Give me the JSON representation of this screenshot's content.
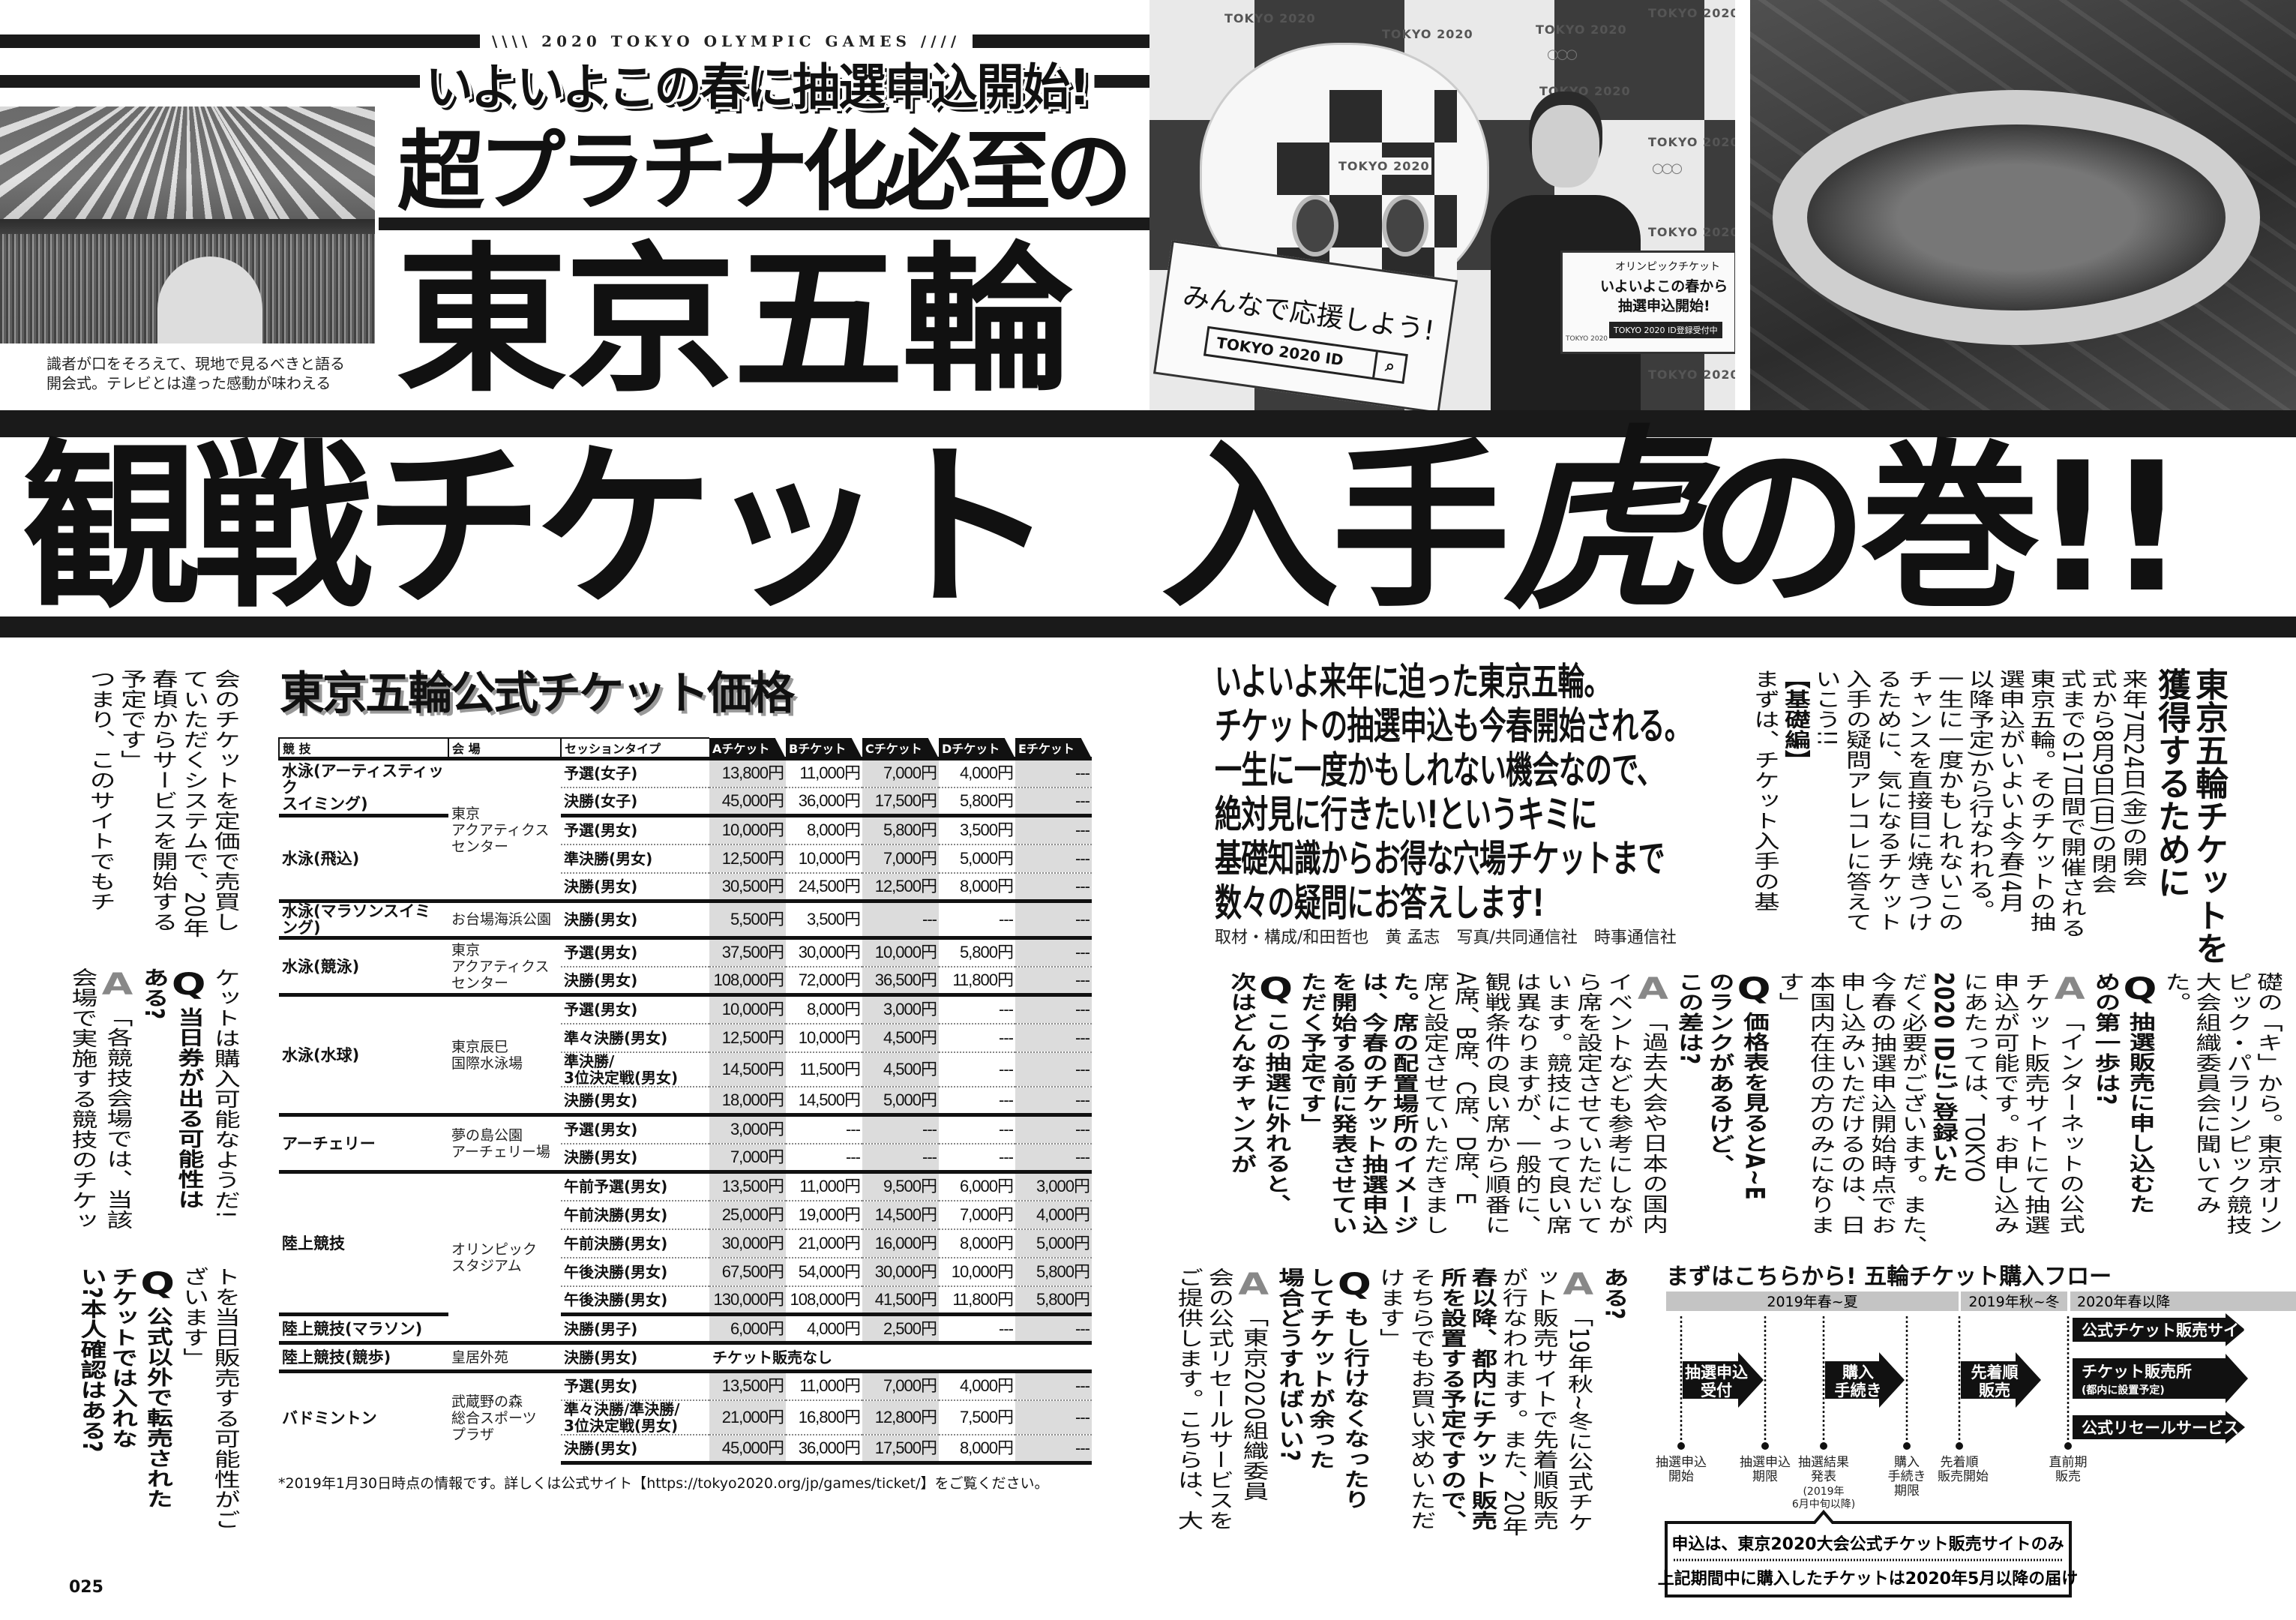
{
  "header": {
    "series_label": "\\\\\\\\ 2020 TOKYO OLYMPIC GAMES ////",
    "subtitle": "いよいよこの春に抽選申込開始!",
    "headline_line1": "超プラチナ化必至の",
    "headline_line2": "東京五輪",
    "title_part1": "観戦チケット",
    "title_part2": "入手",
    "title_tiger": "虎",
    "title_part3": "の巻!!"
  },
  "left_photo": {
    "caption": "識者が口をそろえて、現地で見るべきと語る\n開会式。テレビとは違った感動が味わえる"
  },
  "center_photo": {
    "backdrop_label": "TOKYO 2020",
    "rings": "○○○",
    "sign1_text": "みんなで応援しよう!",
    "sign1_box": "TOKYO 2020 ID",
    "sign1_search_icon": "search-icon",
    "sign2_line1": "オリンピックチケット",
    "sign2_line2": "いよいよこの春から",
    "sign2_line3": "抽選申込開始!",
    "sign2_tag": "TOKYO 2020 ID登録受付中"
  },
  "intro": {
    "lead": "いよいよ来年に迫った東京五輪。\nチケットの抽選申込も今春開始される。\n一生に一度かもしれない機会なので、\n絶対見に行きたい!というキミに\n基礎知識からお得な穴場チケットまで\n数々の疑問にお答えします!",
    "credits": "取材・構成/和田哲也　黄 孟志　写真/共同通信社　時事通信社"
  },
  "section_heading": [
    {
      "text": "東京五輪チケットを"
    },
    {
      "text": "獲得するために"
    }
  ],
  "body_top": [
    {
      "text": "来年7月24日(金)の開会"
    },
    {
      "text": "式から8月9日(日)の閉会"
    },
    {
      "text": "式までの17日間で開催される"
    },
    {
      "text": "東京五輪。そのチケットの抽"
    },
    {
      "text": "選申込がいよいよ今春(4月"
    },
    {
      "text": "以降予定)から行なわれる。"
    },
    {
      "text": "一生に一度かもしれないこの"
    },
    {
      "text": "チャンスを直接目に焼きつけ"
    },
    {
      "text": "るために、気になるチケット"
    },
    {
      "text": "入手の疑問アレコレに答えて"
    },
    {
      "text": "いこう!!"
    },
    {
      "text": "【基礎編】",
      "bold": true
    },
    {
      "text": "まずは、チケット入手の基"
    }
  ],
  "body_middle": [
    {
      "text": "礎の「キ」から。東京オリン"
    },
    {
      "text": "ピック・パラリンピック競技"
    },
    {
      "text": "大会組織委員会に聞いてみ"
    },
    {
      "text": "た。"
    },
    {
      "marker": "Q",
      "text": "抽選販売に申し込むた",
      "bold": true
    },
    {
      "text": "めの第一歩は?",
      "bold": true
    },
    {
      "marker": "A",
      "text": "「インターネットの公式"
    },
    {
      "text": "チケット販売サイトにて抽選"
    },
    {
      "text": "申込が可能です。お申し込み"
    },
    {
      "text": "にあたっては、TOKYO"
    },
    {
      "text": "2020 IDにご登録いた",
      "bold": true
    },
    {
      "text": "だく必要がございます。また、"
    },
    {
      "text": "今春の抽選申込開始時点でお"
    },
    {
      "text": "申し込みいただけるのは、日"
    },
    {
      "text": "本国内在住の方のみになりま"
    },
    {
      "text": "す」"
    },
    {
      "marker": "Q",
      "text": "価格表を見るとA~E",
      "bold": true
    },
    {
      "text": "のランクがあるけど、",
      "bold": true
    },
    {
      "text": "この差は?",
      "bold": true
    },
    {
      "marker": "A",
      "text": "「過去大会や日本の国内"
    },
    {
      "text": "イベントなども参考にしなが"
    },
    {
      "text": "ら席を設定させていただいて"
    },
    {
      "text": "います。競技によって良い席"
    },
    {
      "text": "は異なりますが、一般的に、"
    },
    {
      "text": "観戦条件の良い席から順番に"
    },
    {
      "text": "A席、B席、C席、D席、E"
    },
    {
      "text": "席と設定させていただきまし"
    },
    {
      "text": "た。席の配置場所のイメージ",
      "bold": true
    },
    {
      "text": "は、今春のチケット抽選申込",
      "bold": true
    },
    {
      "text": "を開始する前に発表させてい",
      "bold": true
    },
    {
      "text": "ただく予定です」",
      "bold": true
    },
    {
      "marker": "Q",
      "text": "この抽選に外れると、",
      "bold": true
    },
    {
      "text": "次はどんなチャンスが",
      "bold": true
    }
  ],
  "body_bottom": [
    {
      "text": "ある?",
      "bold": true
    },
    {
      "marker": "A",
      "text": "「19年秋~冬に公式チケ"
    },
    {
      "text": "ット販売サイトで先着順販売"
    },
    {
      "text": "が行なわれます。また、20年"
    },
    {
      "text": "春以降、都内にチケット販売",
      "bold": true
    },
    {
      "text": "所を設置する予定ですので、",
      "bold": true
    },
    {
      "text": "そちらでもお買い求めいただ"
    },
    {
      "text": "けます」"
    },
    {
      "marker": "Q",
      "text": "もし行けなくなったり",
      "bold": true
    },
    {
      "text": "してチケットが余った",
      "bold": true
    },
    {
      "text": "場合どうすればいい?",
      "bold": true
    },
    {
      "marker": "A",
      "text": "「東京2020組織委員"
    },
    {
      "text": "会の公式リセールサービスを"
    },
    {
      "text": "ご提供します。こちらは、大"
    }
  ],
  "left_tier1": [
    {
      "text": "会のチケットを定価で売買し"
    },
    {
      "text": "ていただくシステムで、20年"
    },
    {
      "text": "春頃からサービスを開始する"
    },
    {
      "text": "予定です」"
    },
    {
      "text": "つまり、このサイトでもチ"
    }
  ],
  "left_tier2": [
    {
      "text": "ケットは購入可能なようだ!"
    },
    {
      "marker": "Q",
      "text": "当日券が出る可能性は",
      "bold": true
    },
    {
      "text": "ある?",
      "bold": true
    },
    {
      "marker": "A",
      "text": "「各競技会場では、当該"
    },
    {
      "text": "会場で実施する競技のチケッ"
    }
  ],
  "left_tier3": [
    {
      "text": "トを当日販売する可能性がご"
    },
    {
      "text": "ざいます」"
    },
    {
      "marker": "Q",
      "text": "公式以外で転売された",
      "bold": true
    },
    {
      "text": "チケットでは入れな",
      "bold": true
    },
    {
      "text": "い?本人確認はある?",
      "bold": true
    }
  ],
  "table": {
    "title": "東京五輪公式チケット価格",
    "headers": [
      "競 技",
      "会 場",
      "セッションタイプ",
      "Aチケット",
      "Bチケット",
      "Cチケット",
      "Dチケット",
      "Eチケット"
    ],
    "groups": [
      {
        "event": "水泳(アーティスティック\nスイミング)",
        "venue": "東京\nアクアティクス\nセンター",
        "sessions": [
          {
            "name": "予選(女子)",
            "prices": [
              "13,800円",
              "11,000円",
              "7,000円",
              "4,000円",
              "---"
            ]
          },
          {
            "name": "決勝(女子)",
            "prices": [
              "45,000円",
              "36,000円",
              "17,500円",
              "5,800円",
              "---"
            ]
          }
        ]
      },
      {
        "event": "水泳(飛込)",
        "venue": "東京\nアクアティクス\nセンター",
        "sessions": [
          {
            "name": "予選(男女)",
            "prices": [
              "10,000円",
              "8,000円",
              "5,800円",
              "3,500円",
              "---"
            ]
          },
          {
            "name": "準決勝(男女)",
            "prices": [
              "12,500円",
              "10,000円",
              "7,000円",
              "5,000円",
              "---"
            ]
          },
          {
            "name": "決勝(男女)",
            "prices": [
              "30,500円",
              "24,500円",
              "12,500円",
              "8,000円",
              "---"
            ]
          }
        ]
      },
      {
        "event": "水泳(マラソンスイミング)",
        "venue": "お台場海浜公園",
        "sessions": [
          {
            "name": "決勝(男女)",
            "prices": [
              "5,500円",
              "3,500円",
              "---",
              "---",
              "---"
            ]
          }
        ]
      },
      {
        "event": "水泳(競泳)",
        "venue": "東京\nアクアティクス\nセンター",
        "sessions": [
          {
            "name": "予選(男女)",
            "prices": [
              "37,500円",
              "30,000円",
              "10,000円",
              "5,800円",
              "---"
            ]
          },
          {
            "name": "決勝(男女)",
            "prices": [
              "108,000円",
              "72,000円",
              "36,500円",
              "11,800円",
              "---"
            ]
          }
        ]
      },
      {
        "event": "水泳(水球)",
        "venue": "東京辰巳\n国際水泳場",
        "sessions": [
          {
            "name": "予選(男女)",
            "prices": [
              "10,000円",
              "8,000円",
              "3,000円",
              "---",
              "---"
            ]
          },
          {
            "name": "準々決勝(男女)",
            "prices": [
              "12,500円",
              "10,000円",
              "4,500円",
              "---",
              "---"
            ]
          },
          {
            "name": "準決勝/\n3位決定戦(男女)",
            "prices": [
              "14,500円",
              "11,500円",
              "4,500円",
              "---",
              "---"
            ]
          },
          {
            "name": "決勝(男女)",
            "prices": [
              "18,000円",
              "14,500円",
              "5,000円",
              "---",
              "---"
            ]
          }
        ]
      },
      {
        "event": "アーチェリー",
        "venue": "夢の島公園\nアーチェリー場",
        "sessions": [
          {
            "name": "予選(男女)",
            "prices": [
              "3,000円",
              "---",
              "---",
              "---",
              "---"
            ]
          },
          {
            "name": "決勝(男女)",
            "prices": [
              "7,000円",
              "---",
              "---",
              "---",
              "---"
            ]
          }
        ]
      },
      {
        "event": "陸上競技",
        "venue": "オリンピック\nスタジアム",
        "sessions": [
          {
            "name": "午前予選(男女)",
            "prices": [
              "13,500円",
              "11,000円",
              "9,500円",
              "6,000円",
              "3,000円"
            ]
          },
          {
            "name": "午前決勝(男女)",
            "prices": [
              "25,000円",
              "19,000円",
              "14,500円",
              "7,000円",
              "4,000円"
            ]
          },
          {
            "name": "午前決勝(男女)",
            "prices": [
              "30,000円",
              "21,000円",
              "16,000円",
              "8,000円",
              "5,000円"
            ]
          },
          {
            "name": "午後決勝(男女)",
            "prices": [
              "67,500円",
              "54,000円",
              "30,000円",
              "10,000円",
              "5,800円"
            ]
          },
          {
            "name": "午後決勝(男女)",
            "prices": [
              "130,000円",
              "108,000円",
              "41,500円",
              "11,800円",
              "5,800円"
            ]
          }
        ]
      },
      {
        "event": "陸上競技(マラソン)",
        "venue": "オリンピック\nスタジアム",
        "sessions": [
          {
            "name": "決勝(男子)",
            "prices": [
              "6,000円",
              "4,000円",
              "2,500円",
              "---",
              "---"
            ]
          }
        ]
      },
      {
        "event": "陸上競技(競歩)",
        "venue": "皇居外苑",
        "sessions": [
          {
            "name": "決勝(男女)",
            "note": "チケット販売なし"
          }
        ]
      },
      {
        "event": "バドミントン",
        "venue": "武蔵野の森\n総合スポーツ\nプラザ",
        "sessions": [
          {
            "name": "予選(男女)",
            "prices": [
              "13,500円",
              "11,000円",
              "7,000円",
              "4,000円",
              "---"
            ]
          },
          {
            "name": "準々決勝/準決勝/\n3位決定戦(男女)",
            "prices": [
              "21,000円",
              "16,800円",
              "12,800円",
              "7,500円",
              "---"
            ]
          },
          {
            "name": "決勝(男女)",
            "prices": [
              "45,000円",
              "36,000円",
              "17,500円",
              "8,000円",
              "---"
            ]
          }
        ]
      }
    ],
    "footnote": "*2019年1月30日時点の情報です。詳しくは公式サイト【https://tokyo2020.org/jp/games/ticket/】をご覧ください。"
  },
  "page_number": "025",
  "flow": {
    "title": "まずはこちらから! 五輪チケット購入フロー",
    "periods": [
      "2019年春~夏",
      "2019年秋~冬",
      "2020年春以降"
    ],
    "steps": [
      {
        "line1": "抽選申込",
        "line2": "受付"
      },
      {
        "line1": "購入",
        "line2": "手続き"
      },
      {
        "line1": "先着順",
        "line2": "販売"
      }
    ],
    "channels": [
      {
        "label": "公式チケット販売サイト"
      },
      {
        "label": "チケット販売所",
        "sub": "(都内に設置予定)"
      },
      {
        "label": "公式リセールサービス"
      }
    ],
    "milestones": [
      {
        "line1": "抽選申込",
        "line2": "開始"
      },
      {
        "line1": "抽選申込",
        "line2": "期限"
      },
      {
        "line1": "抽選結果",
        "line2": "発表",
        "note1": "(2019年",
        "note2": "6月中旬以降)"
      },
      {
        "line1": "購入",
        "line2": "手続き",
        "line3": "期限"
      },
      {
        "line1": "先着順",
        "line2": "販売開始"
      },
      {
        "line1": "直前期",
        "line2": "販売"
      }
    ],
    "note_line1": "申込は、東京2020大会公式チケット販売サイトのみ",
    "note_line2": "上記期間中に購入したチケットは2020年5月以降の届け"
  },
  "colors": {
    "ink": "#111111",
    "shade": "#dcdcdc",
    "answer_marker": "#888888"
  }
}
